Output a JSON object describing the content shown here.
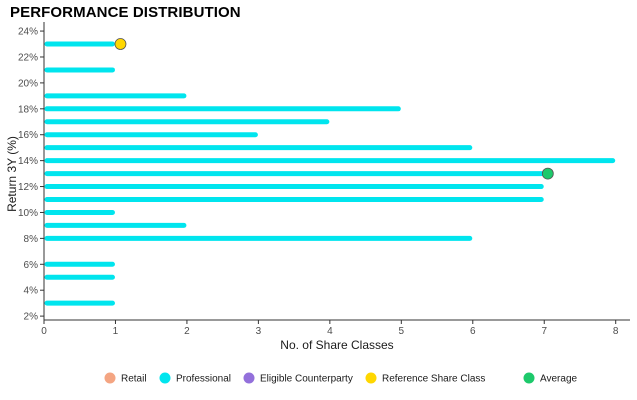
{
  "chart_data": {
    "type": "bar",
    "orientation": "horizontal",
    "title": "PERFORMANCE DISTRIBUTION",
    "xlabel": "No. of Share Classes",
    "ylabel": "Return 3Y (%)",
    "xlim": [
      0,
      8.2
    ],
    "ylim": [
      1.7,
      24.7
    ],
    "x_ticks": [
      0,
      1,
      2,
      3,
      4,
      5,
      6,
      7,
      8
    ],
    "y_ticks": [
      2,
      4,
      6,
      8,
      10,
      12,
      14,
      16,
      18,
      20,
      22,
      24
    ],
    "y_tick_format": "{v}%",
    "grid": false,
    "legend_position": "bottom",
    "series": [
      {
        "name": "Professional",
        "color": "#00E5EE",
        "bars": [
          {
            "y": 3,
            "value": 1
          },
          {
            "y": 5,
            "value": 1
          },
          {
            "y": 6,
            "value": 1
          },
          {
            "y": 8,
            "value": 6
          },
          {
            "y": 9,
            "value": 2
          },
          {
            "y": 10,
            "value": 1
          },
          {
            "y": 11,
            "value": 7
          },
          {
            "y": 12,
            "value": 7
          },
          {
            "y": 13,
            "value": 7
          },
          {
            "y": 14,
            "value": 8
          },
          {
            "y": 15,
            "value": 6
          },
          {
            "y": 16,
            "value": 3
          },
          {
            "y": 17,
            "value": 4
          },
          {
            "y": 18,
            "value": 5
          },
          {
            "y": 19,
            "value": 2
          },
          {
            "y": 21,
            "value": 1
          },
          {
            "y": 23,
            "value": 1
          }
        ]
      }
    ],
    "markers": [
      {
        "name": "Reference Share Class",
        "x": 1.07,
        "y": 23,
        "color": "#FFD700"
      },
      {
        "name": "Average",
        "x": 7.05,
        "y": 13,
        "color": "#1DC96B"
      }
    ],
    "legend": [
      {
        "label": "Retail",
        "color": "#F4A582"
      },
      {
        "label": "Professional",
        "color": "#00E5EE"
      },
      {
        "label": "Eligible Counterparty",
        "color": "#9370DB"
      },
      {
        "label": "Reference Share Class",
        "color": "#FFD700"
      },
      {
        "label": "Average",
        "color": "#1DC96B"
      }
    ]
  }
}
